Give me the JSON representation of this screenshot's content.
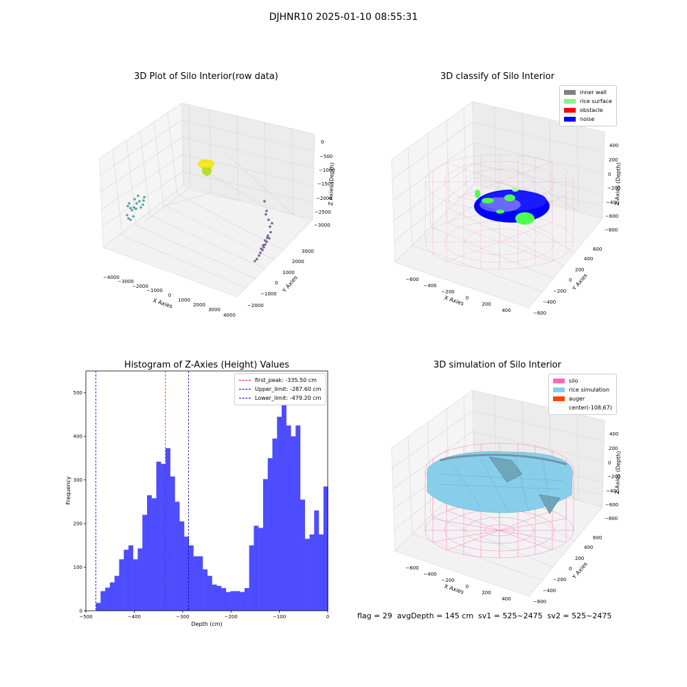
{
  "figure": {
    "suptitle": "DJHNR10 2025-01-10 08:55:31",
    "status_text": "flag = 29  avgDepth = 145 cm  sv1 = 525~2475  sv2 = 525~2475"
  },
  "colors": {
    "inner_wall": "#808080",
    "rice_surface": "#90ee90",
    "obstacle": "#ff0000",
    "noise": "#0000ff",
    "silo": "#ff69b4",
    "rice_simulation": "#87ceeb",
    "auger": "#ff4500",
    "hist_bar": "#4d4dff"
  },
  "chart_data": [
    {
      "type": "scatter",
      "title": "3D Plot of Silo Interior(row data)",
      "xlabel": "X Axies",
      "ylabel": "Y Axies",
      "zlabel": "Z Axies (Depth)",
      "x_ticks": [
        "−4000",
        "−3000",
        "−2000",
        "−1000",
        "0",
        "1000",
        "2000",
        "3000",
        "4000"
      ],
      "y_ticks": [
        "−2000",
        "−1000",
        "0",
        "1000",
        "2000",
        "3000"
      ],
      "z_ticks": [
        "0",
        "−500",
        "−1000",
        "−1500",
        "−2000",
        "−2500",
        "−3000"
      ],
      "clusters": [
        {
          "name": "yellow cluster",
          "x": -1500,
          "y": 2500,
          "z": -1000,
          "color": "#f2e31b"
        },
        {
          "name": "teal cluster",
          "x": -3500,
          "y": 0,
          "z": -2200,
          "color": "#3a8a8c"
        },
        {
          "name": "purple cluster",
          "x": 2000,
          "y": 1000,
          "z": -2800,
          "color": "#5a3e85"
        }
      ]
    },
    {
      "type": "scatter",
      "title": "3D classify of Silo Interior",
      "xlabel": "X Axies",
      "ylabel": "Y Axies",
      "zlabel": "Z Axies (Depth)",
      "x_ticks": [
        "−600",
        "−400",
        "−200",
        "0",
        "200",
        "400"
      ],
      "y_ticks": [
        "−600",
        "−400",
        "−200",
        "0",
        "200",
        "400",
        "600"
      ],
      "z_ticks": [
        "400",
        "200",
        "0",
        "−200",
        "−400",
        "−600",
        "−800"
      ],
      "legend": [
        "inner wall",
        "rice surface",
        "obstacle",
        "noise"
      ]
    },
    {
      "type": "bar",
      "title": "Histogram of Z-Axies (Height) Values",
      "xlabel": "Depth (cm)",
      "ylabel": "Frequency",
      "xlim": [
        -500,
        0
      ],
      "ylim": [
        0,
        550
      ],
      "x_ticks": [
        -500,
        -400,
        -300,
        -200,
        -100,
        0
      ],
      "y_ticks": [
        0,
        100,
        200,
        300,
        400,
        500
      ],
      "bin_start": -479.2,
      "bin_width": 9.6,
      "values": [
        18,
        45,
        53,
        65,
        80,
        118,
        140,
        150,
        118,
        143,
        220,
        265,
        258,
        342,
        337,
        373,
        308,
        250,
        205,
        170,
        150,
        125,
        125,
        95,
        80,
        60,
        57,
        52,
        43,
        45,
        45,
        43,
        52,
        150,
        195,
        190,
        302,
        350,
        395,
        445,
        480,
        425,
        400,
        425,
        255,
        165,
        175,
        230,
        175,
        285
      ],
      "lines": [
        {
          "label": "first_peak: -335.50 cm",
          "x": -335.5,
          "color": "#ff0000"
        },
        {
          "label": "Upper_limit: -287.60 cm",
          "x": -287.6,
          "color": "#0000aa"
        },
        {
          "label": "Lower_limit: -479.20 cm",
          "x": -479.2,
          "color": "#0000aa"
        }
      ]
    },
    {
      "type": "area",
      "title": "3D simulation of Silo Interior",
      "xlabel": "X Axies",
      "ylabel": "Y Axies",
      "zlabel": "Z Axies (Depth)",
      "x_ticks": [
        "−600",
        "−400",
        "−200",
        "0",
        "200",
        "400"
      ],
      "y_ticks": [
        "−600",
        "−400",
        "−200",
        "0",
        "200",
        "400",
        "600"
      ],
      "z_ticks": [
        "400",
        "200",
        "0",
        "−200",
        "−400",
        "−600",
        "−800"
      ],
      "legend": [
        "silo",
        "rice simulation",
        "auger",
        "center(-108,67)"
      ]
    }
  ]
}
